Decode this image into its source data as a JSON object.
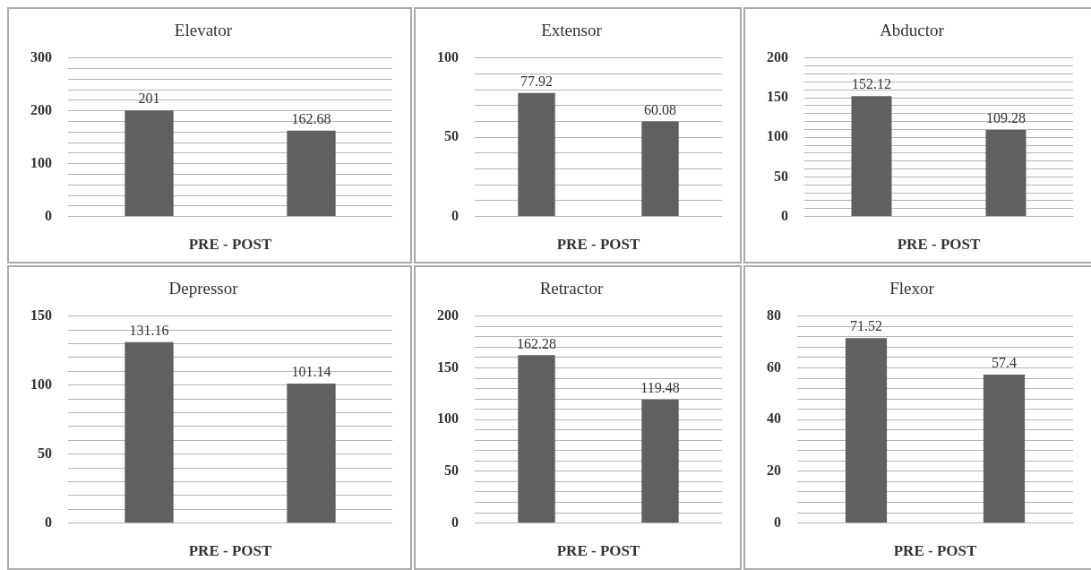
{
  "chart_data": [
    {
      "type": "bar",
      "title": "Elevator",
      "xlabel": "PRE - POST",
      "categories": [
        null,
        null
      ],
      "values": [
        201,
        162.68
      ],
      "color": "#606060",
      "ylim": [
        0,
        300
      ],
      "yticks": [
        0,
        {
          "value": 20,
          "label": null
        },
        {
          "value": 40,
          "label": null
        },
        {
          "value": 60,
          "label": null
        },
        {
          "value": 80,
          "label": null
        },
        100,
        {
          "value": 120,
          "label": null
        },
        {
          "value": 140,
          "label": null
        },
        {
          "value": 160,
          "label": null
        },
        {
          "value": 180,
          "label": null
        },
        200,
        {
          "value": 220,
          "label": null
        },
        {
          "value": 240,
          "label": null
        },
        {
          "value": 260,
          "label": null
        },
        {
          "value": 280,
          "label": null
        },
        300
      ],
      "grid": "y",
      "data_labels": true
    },
    {
      "type": "bar",
      "title": "Extensor",
      "xlabel": "PRE - POST",
      "categories": [
        null,
        null
      ],
      "values": [
        77.92,
        60.08
      ],
      "color": "#606060",
      "ylim": [
        0,
        100
      ],
      "yticks": [
        0,
        {
          "value": 10,
          "label": null
        },
        {
          "value": 20,
          "label": null
        },
        {
          "value": 30,
          "label": null
        },
        {
          "value": 40,
          "label": null
        },
        50,
        {
          "value": 60,
          "label": null
        },
        {
          "value": 70,
          "label": null
        },
        {
          "value": 80,
          "label": null
        },
        {
          "value": 90,
          "label": null
        },
        100
      ],
      "grid": "y",
      "data_labels": true
    },
    {
      "type": "bar",
      "title": "Abductor",
      "xlabel": "PRE - POST",
      "categories": [
        null,
        null
      ],
      "values": [
        152.12,
        109.28
      ],
      "color": "#606060",
      "ylim": [
        0,
        200
      ],
      "yticks": [
        0,
        {
          "value": 10,
          "label": null
        },
        {
          "value": 20,
          "label": null
        },
        {
          "value": 30,
          "label": null
        },
        {
          "value": 40,
          "label": null
        },
        50,
        {
          "value": 60,
          "label": null
        },
        {
          "value": 70,
          "label": null
        },
        {
          "value": 80,
          "label": null
        },
        {
          "value": 90,
          "label": null
        },
        100,
        {
          "value": 110,
          "label": null
        },
        {
          "value": 120,
          "label": null
        },
        {
          "value": 130,
          "label": null
        },
        {
          "value": 140,
          "label": null
        },
        150,
        {
          "value": 160,
          "label": null
        },
        {
          "value": 170,
          "label": null
        },
        {
          "value": 180,
          "label": null
        },
        {
          "value": 190,
          "label": null
        },
        200
      ],
      "grid": "y",
      "data_labels": true
    },
    {
      "type": "bar",
      "title": "Depressor",
      "xlabel": "PRE - POST",
      "categories": [
        null,
        null
      ],
      "values": [
        131.16,
        101.14
      ],
      "color": "#606060",
      "ylim": [
        0,
        150
      ],
      "yticks": [
        0,
        {
          "value": 10,
          "label": null
        },
        {
          "value": 20,
          "label": null
        },
        {
          "value": 30,
          "label": null
        },
        {
          "value": 40,
          "label": null
        },
        50,
        {
          "value": 60,
          "label": null
        },
        {
          "value": 70,
          "label": null
        },
        {
          "value": 80,
          "label": null
        },
        {
          "value": 90,
          "label": null
        },
        100,
        {
          "value": 110,
          "label": null
        },
        {
          "value": 120,
          "label": null
        },
        {
          "value": 130,
          "label": null
        },
        {
          "value": 140,
          "label": null
        },
        150
      ],
      "grid": "y",
      "data_labels": true
    },
    {
      "type": "bar",
      "title": "Retractor",
      "xlabel": "PRE - POST",
      "categories": [
        null,
        null
      ],
      "values": [
        162.28,
        119.48
      ],
      "color": "#606060",
      "ylim": [
        0,
        200
      ],
      "yticks": [
        0,
        {
          "value": 10,
          "label": null
        },
        {
          "value": 20,
          "label": null
        },
        {
          "value": 30,
          "label": null
        },
        {
          "value": 40,
          "label": null
        },
        50,
        {
          "value": 60,
          "label": null
        },
        {
          "value": 70,
          "label": null
        },
        {
          "value": 80,
          "label": null
        },
        {
          "value": 90,
          "label": null
        },
        100,
        {
          "value": 110,
          "label": null
        },
        {
          "value": 120,
          "label": null
        },
        {
          "value": 130,
          "label": null
        },
        {
          "value": 140,
          "label": null
        },
        150,
        {
          "value": 160,
          "label": null
        },
        {
          "value": 170,
          "label": null
        },
        {
          "value": 180,
          "label": null
        },
        {
          "value": 190,
          "label": null
        },
        200
      ],
      "grid": "y",
      "data_labels": true
    },
    {
      "type": "bar",
      "title": "Flexor",
      "xlabel": "PRE - POST",
      "categories": [
        null,
        null
      ],
      "values": [
        71.52,
        57.4
      ],
      "color": "#606060",
      "ylim": [
        0,
        80
      ],
      "yticks": [
        0,
        {
          "value": 4,
          "label": null
        },
        {
          "value": 8,
          "label": null
        },
        {
          "value": 12,
          "label": null
        },
        {
          "value": 16,
          "label": null
        },
        20,
        {
          "value": 24,
          "label": null
        },
        {
          "value": 28,
          "label": null
        },
        {
          "value": 32,
          "label": null
        },
        {
          "value": 36,
          "label": null
        },
        40,
        {
          "value": 44,
          "label": null
        },
        {
          "value": 48,
          "label": null
        },
        {
          "value": 52,
          "label": null
        },
        {
          "value": 56,
          "label": null
        },
        60,
        {
          "value": 64,
          "label": null
        },
        {
          "value": 68,
          "label": null
        },
        {
          "value": 72,
          "label": null
        },
        {
          "value": 76,
          "label": null
        },
        80
      ],
      "grid": "y",
      "data_labels": true
    }
  ]
}
